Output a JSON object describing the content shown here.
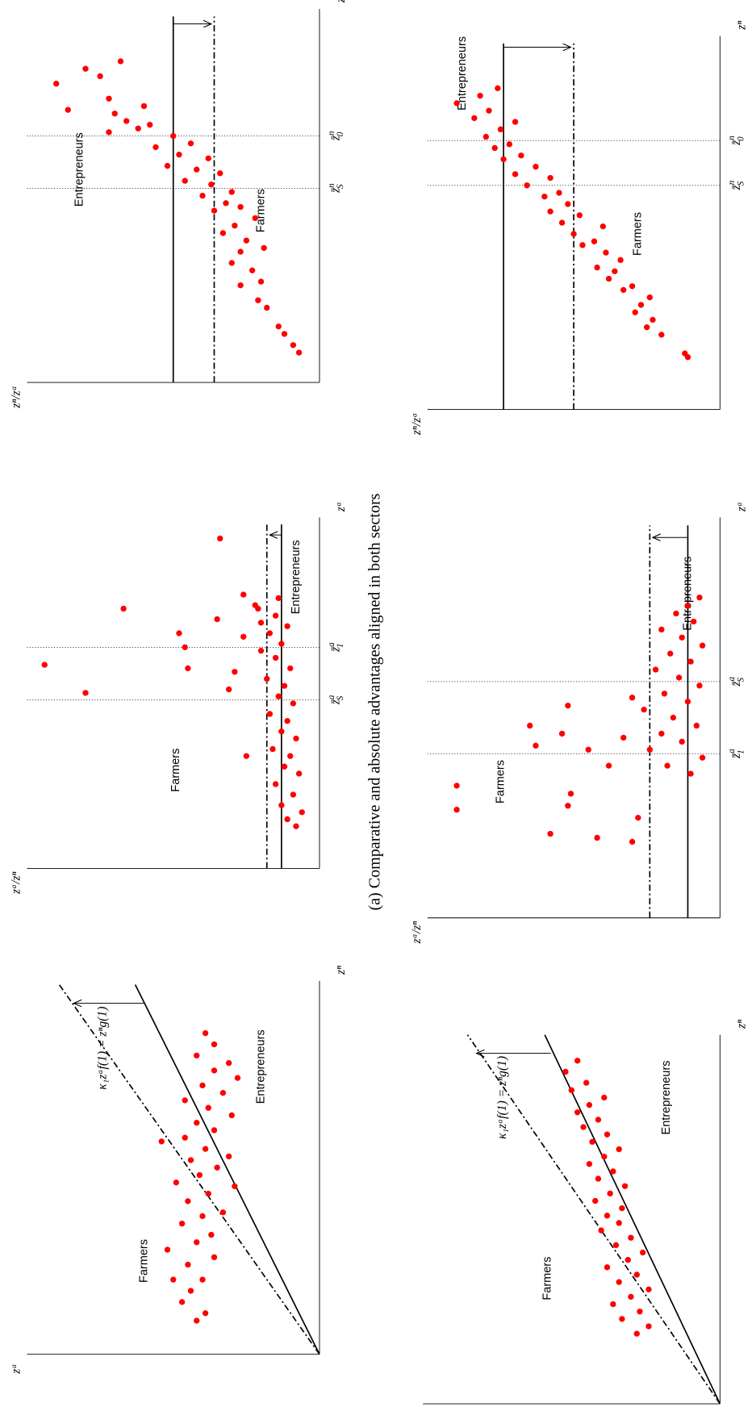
{
  "caption": "(a) Comparative and absolute advantages aligned in both sectors",
  "chart_data": [
    {
      "type": "scatter",
      "color": "#ff0000",
      "xlabel": "zⁿ",
      "ylabel": "zᵃ",
      "xlim": [
        0,
        1
      ],
      "ylim": [
        0,
        1
      ],
      "annotations": [
        "Farmers",
        "Entrepreneurs",
        "κ₁zᵃf(1) = zⁿg(1)"
      ],
      "x": [
        0.09,
        0.11,
        0.14,
        0.17,
        0.2,
        0.2,
        0.24,
        0.26,
        0.28,
        0.3,
        0.32,
        0.35,
        0.37,
        0.38,
        0.41,
        0.43,
        0.45,
        0.46,
        0.48,
        0.5,
        0.52,
        0.53,
        0.55,
        0.57,
        0.58,
        0.6,
        0.62,
        0.64,
        0.66,
        0.68,
        0.7,
        0.72,
        0.74,
        0.76,
        0.78,
        0.8,
        0.83,
        0.86
      ],
      "y": [
        0.42,
        0.39,
        0.47,
        0.44,
        0.4,
        0.5,
        0.45,
        0.36,
        0.52,
        0.42,
        0.37,
        0.47,
        0.4,
        0.33,
        0.45,
        0.38,
        0.29,
        0.49,
        0.41,
        0.35,
        0.44,
        0.31,
        0.39,
        0.54,
        0.46,
        0.36,
        0.42,
        0.3,
        0.38,
        0.46,
        0.33,
        0.4,
        0.28,
        0.36,
        0.31,
        0.42,
        0.36,
        0.39
      ],
      "lines": [
        {
          "style": "solid",
          "x": [
            0,
            0.99
          ],
          "y": [
            0,
            0.63
          ]
        },
        {
          "style": "dashdot",
          "x": [
            0,
            0.99
          ],
          "y": [
            0,
            0.89
          ]
        },
        {
          "style": "arrow",
          "x": [
            0.94,
            0.94
          ],
          "y": [
            0.6,
            0.84
          ]
        }
      ],
      "vlines": []
    },
    {
      "type": "scatter",
      "color": "#ff0000",
      "xlabel": "zᵃ",
      "ylabel": "zᵃ/zⁿ",
      "xlim": [
        0,
        1
      ],
      "ylim": [
        0,
        1
      ],
      "annotations": [
        "Farmers",
        "Entrepreneurs"
      ],
      "x": [
        0.58,
        0.5,
        0.74,
        0.67,
        0.63,
        0.57,
        0.94,
        0.71,
        0.51,
        0.56,
        0.78,
        0.32,
        0.66,
        0.74,
        0.7,
        0.12,
        0.14,
        0.16,
        0.18,
        0.21,
        0.24,
        0.27,
        0.29,
        0.32,
        0.34,
        0.37,
        0.39,
        0.42,
        0.44,
        0.47,
        0.49,
        0.52,
        0.54,
        0.57,
        0.6,
        0.62,
        0.64,
        0.67,
        0.69,
        0.72,
        0.75,
        0.77
      ],
      "y": [
        0.94,
        0.8,
        0.67,
        0.48,
        0.46,
        0.45,
        0.34,
        0.35,
        0.31,
        0.29,
        0.26,
        0.25,
        0.26,
        0.21,
        0.2,
        0.08,
        0.11,
        0.06,
        0.13,
        0.09,
        0.15,
        0.07,
        0.12,
        0.1,
        0.16,
        0.08,
        0.13,
        0.11,
        0.17,
        0.09,
        0.14,
        0.12,
        0.18,
        0.1,
        0.15,
        0.2,
        0.13,
        0.17,
        0.11,
        0.15,
        0.22,
        0.14
      ],
      "lines": [
        {
          "style": "solid",
          "x": [
            0,
            0.98
          ],
          "y": [
            0.13,
            0.13
          ]
        },
        {
          "style": "dashdot",
          "x": [
            0,
            0.98
          ],
          "y": [
            0.18,
            0.18
          ]
        },
        {
          "style": "arrow",
          "x": [
            0.95,
            0.95
          ],
          "y": [
            0.13,
            0.17
          ]
        }
      ],
      "vlines": [
        {
          "x": 0.48,
          "base": "z̄",
          "sup": "a",
          "sub": "S"
        },
        {
          "x": 0.63,
          "base": "z̄",
          "sup": "a",
          "sub": "1"
        }
      ]
    },
    {
      "type": "scatter",
      "color": "#ff0000",
      "xlabel": "zⁿ",
      "ylabel": "zⁿ/zᵃ",
      "xlim": [
        0,
        1
      ],
      "ylim": [
        0,
        1
      ],
      "annotations": [
        "Entrepreneurs",
        "Farmers"
      ],
      "x": [
        0.08,
        0.1,
        0.13,
        0.15,
        0.2,
        0.22,
        0.27,
        0.26,
        0.3,
        0.32,
        0.36,
        0.35,
        0.38,
        0.4,
        0.42,
        0.44,
        0.46,
        0.47,
        0.48,
        0.5,
        0.51,
        0.53,
        0.54,
        0.56,
        0.57,
        0.58,
        0.6,
        0.61,
        0.63,
        0.64,
        0.66,
        0.68,
        0.67,
        0.69,
        0.7,
        0.72,
        0.73,
        0.74,
        0.76,
        0.8,
        0.82,
        0.84,
        0.86
      ],
      "y": [
        0.07,
        0.09,
        0.12,
        0.14,
        0.18,
        0.21,
        0.2,
        0.27,
        0.23,
        0.3,
        0.19,
        0.27,
        0.25,
        0.33,
        0.29,
        0.22,
        0.36,
        0.27,
        0.32,
        0.4,
        0.3,
        0.37,
        0.46,
        0.34,
        0.42,
        0.52,
        0.38,
        0.48,
        0.56,
        0.44,
        0.5,
        0.62,
        0.72,
        0.58,
        0.66,
        0.7,
        0.86,
        0.6,
        0.72,
        0.9,
        0.75,
        0.8,
        0.68
      ],
      "lines": [
        {
          "style": "solid",
          "x": [
            0,
            0.98
          ],
          "y": [
            0.5,
            0.5
          ]
        },
        {
          "style": "dashdot",
          "x": [
            0,
            0.98
          ],
          "y": [
            0.36,
            0.36
          ]
        },
        {
          "style": "arrow",
          "x": [
            0.96,
            0.96
          ],
          "y": [
            0.5,
            0.37
          ]
        }
      ],
      "vlines": [
        {
          "x": 0.52,
          "base": "z̄",
          "sup": "n",
          "sub": "S"
        },
        {
          "x": 0.66,
          "base": "z̄",
          "sup": "n",
          "sub": "0"
        }
      ]
    },
    {
      "type": "scatter",
      "color": "#ff0000",
      "xlabel": "zⁿ",
      "ylabel": "zᵃ",
      "xlim": [
        0,
        1
      ],
      "ylim": [
        0,
        1
      ],
      "annotations": [
        "Farmers",
        "Entrepreneurs",
        "κ₁zᵃf(1) = zⁿg(1)"
      ],
      "x": [
        0.19,
        0.21,
        0.23,
        0.25,
        0.27,
        0.29,
        0.31,
        0.33,
        0.35,
        0.37,
        0.39,
        0.41,
        0.43,
        0.45,
        0.47,
        0.49,
        0.51,
        0.53,
        0.55,
        0.57,
        0.59,
        0.61,
        0.63,
        0.65,
        0.67,
        0.69,
        0.71,
        0.73,
        0.75,
        0.77,
        0.79,
        0.81,
        0.83,
        0.85,
        0.87,
        0.9,
        0.93
      ],
      "y": [
        0.28,
        0.24,
        0.33,
        0.27,
        0.36,
        0.3,
        0.24,
        0.34,
        0.28,
        0.38,
        0.31,
        0.26,
        0.35,
        0.3,
        0.4,
        0.34,
        0.38,
        0.33,
        0.42,
        0.37,
        0.32,
        0.41,
        0.36,
        0.44,
        0.39,
        0.34,
        0.43,
        0.38,
        0.46,
        0.41,
        0.48,
        0.44,
        0.39,
        0.5,
        0.45,
        0.52,
        0.48
      ],
      "lines": [
        {
          "style": "solid",
          "x": [
            0,
            1
          ],
          "y": [
            0,
            0.59
          ]
        },
        {
          "style": "dashdot",
          "x": [
            0,
            1
          ],
          "y": [
            0,
            0.85
          ]
        },
        {
          "style": "arrow",
          "x": [
            0.95,
            0.95
          ],
          "y": [
            0.57,
            0.82
          ]
        }
      ],
      "vlines": []
    },
    {
      "type": "scatter",
      "color": "#ff0000",
      "xlabel": "zᵃ",
      "ylabel": "zᵃ/zⁿ",
      "xlim": [
        0,
        1
      ],
      "ylim": [
        0,
        1
      ],
      "annotations": [
        "Farmers",
        "Entrepreneurs"
      ],
      "x": [
        0.33,
        0.27,
        0.48,
        0.43,
        0.21,
        0.46,
        0.53,
        0.28,
        0.31,
        0.42,
        0.2,
        0.19,
        0.38,
        0.45,
        0.25,
        0.55,
        0.36,
        0.38,
        0.4,
        0.42,
        0.44,
        0.46,
        0.48,
        0.5,
        0.52,
        0.54,
        0.56,
        0.58,
        0.6,
        0.62,
        0.64,
        0.66,
        0.68,
        0.7,
        0.72,
        0.74,
        0.76,
        0.78,
        0.8
      ],
      "y": [
        0.9,
        0.9,
        0.65,
        0.63,
        0.58,
        0.54,
        0.52,
        0.52,
        0.51,
        0.45,
        0.42,
        0.3,
        0.38,
        0.33,
        0.28,
        0.3,
        0.1,
        0.18,
        0.06,
        0.24,
        0.13,
        0.2,
        0.08,
        0.16,
        0.26,
        0.11,
        0.19,
        0.07,
        0.14,
        0.22,
        0.1,
        0.17,
        0.06,
        0.13,
        0.2,
        0.09,
        0.15,
        0.11,
        0.07
      ],
      "lines": [
        {
          "style": "solid",
          "x": [
            0,
            0.98
          ],
          "y": [
            0.11,
            0.11
          ]
        },
        {
          "style": "dashdot",
          "x": [
            0,
            0.98
          ],
          "y": [
            0.24,
            0.24
          ]
        },
        {
          "style": "arrow",
          "x": [
            0.95,
            0.95
          ],
          "y": [
            0.11,
            0.23
          ]
        }
      ],
      "vlines": [
        {
          "x": 0.41,
          "base": "z̄",
          "sup": "a",
          "sub": "1"
        },
        {
          "x": 0.59,
          "base": "z̄",
          "sup": "a",
          "sub": "S"
        }
      ]
    },
    {
      "type": "scatter",
      "color": "#ff0000",
      "xlabel": "zⁿ",
      "ylabel": "zⁿ/zᵃ",
      "xlim": [
        0,
        1
      ],
      "ylim": [
        0,
        1
      ],
      "annotations": [
        "Entrepreneurs",
        "Farmers"
      ],
      "x": [
        0.14,
        0.15,
        0.2,
        0.22,
        0.24,
        0.26,
        0.28,
        0.3,
        0.32,
        0.33,
        0.35,
        0.37,
        0.38,
        0.4,
        0.42,
        0.44,
        0.45,
        0.47,
        0.49,
        0.5,
        0.52,
        0.53,
        0.55,
        0.57,
        0.58,
        0.6,
        0.62,
        0.63,
        0.65,
        0.67,
        0.68,
        0.7,
        0.71,
        0.73,
        0.75,
        0.77,
        0.78,
        0.8,
        0.82,
        0.84,
        0.86
      ],
      "y": [
        0.11,
        0.12,
        0.2,
        0.25,
        0.23,
        0.29,
        0.27,
        0.24,
        0.33,
        0.3,
        0.38,
        0.36,
        0.42,
        0.34,
        0.39,
        0.47,
        0.43,
        0.5,
        0.4,
        0.54,
        0.48,
        0.58,
        0.52,
        0.6,
        0.55,
        0.66,
        0.58,
        0.7,
        0.63,
        0.74,
        0.68,
        0.77,
        0.72,
        0.8,
        0.75,
        0.7,
        0.84,
        0.79,
        0.9,
        0.82,
        0.76
      ],
      "lines": [
        {
          "style": "solid",
          "x": [
            0,
            0.98
          ],
          "y": [
            0.74,
            0.74
          ]
        },
        {
          "style": "dashdot",
          "x": [
            0,
            0.98
          ],
          "y": [
            0.5,
            0.5
          ]
        },
        {
          "style": "arrow",
          "x": [
            0.97,
            0.97
          ],
          "y": [
            0.74,
            0.51
          ]
        }
      ],
      "vlines": [
        {
          "x": 0.6,
          "base": "z̄",
          "sup": "n",
          "sub": "S"
        },
        {
          "x": 0.72,
          "base": "z̄",
          "sup": "n",
          "sub": "0"
        }
      ]
    }
  ]
}
